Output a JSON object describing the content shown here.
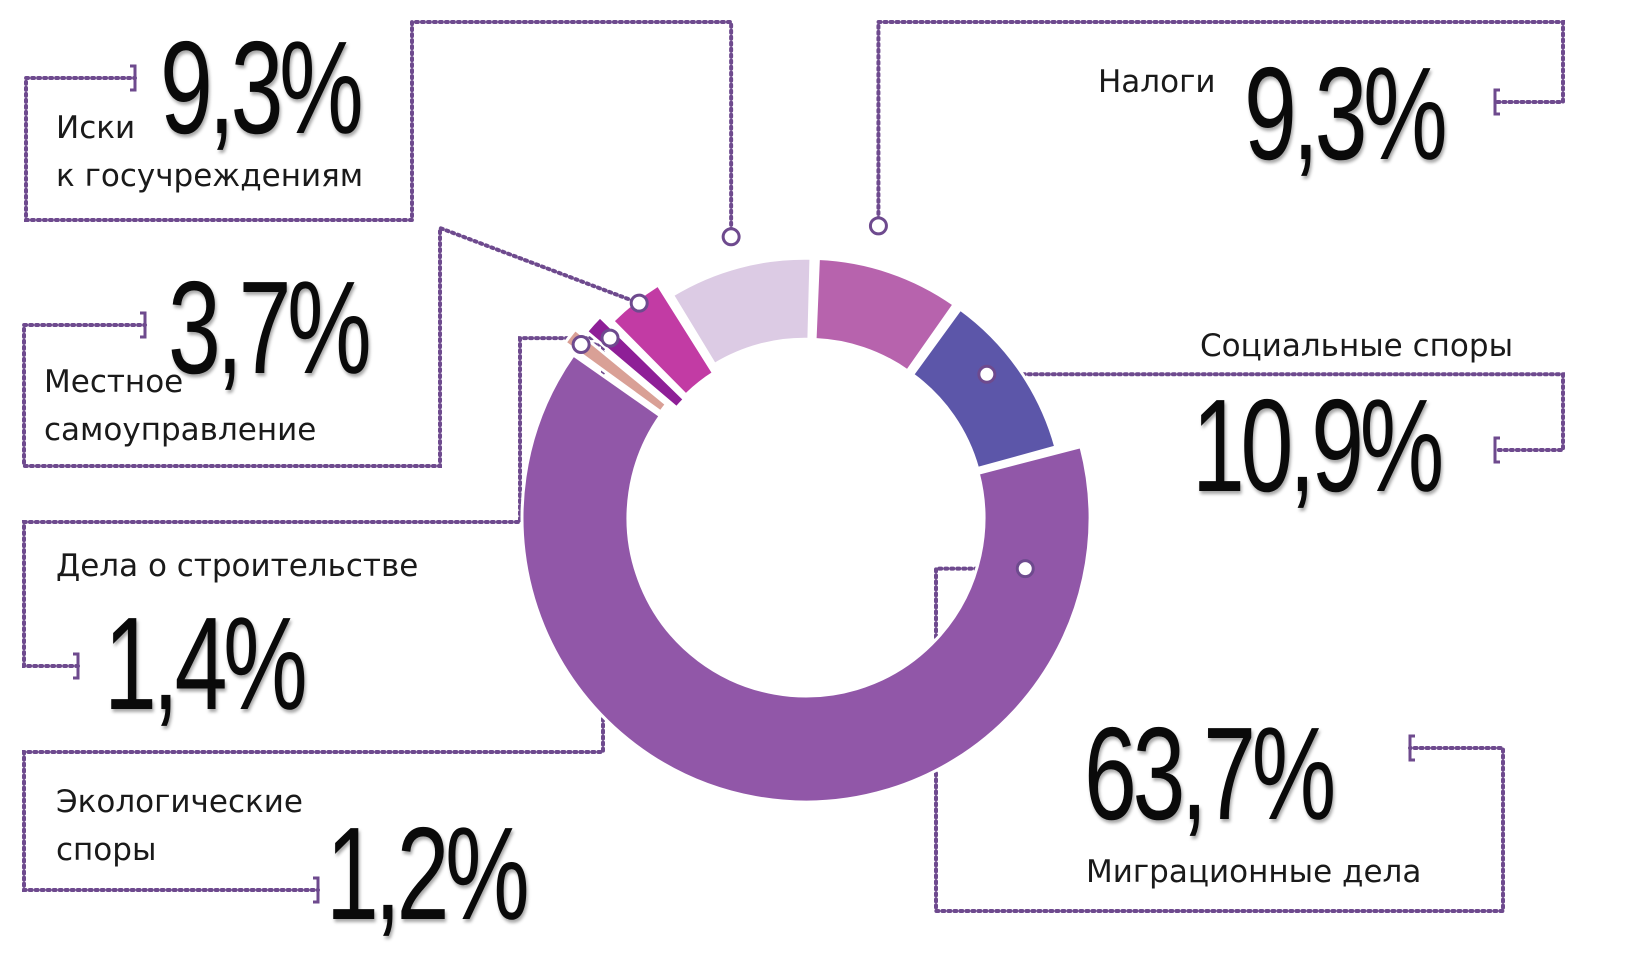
{
  "colors": {
    "connector": "#6e4a8e",
    "dot_fill": "#ffffff",
    "dot_stroke": "#6e4a8e"
  },
  "chart_data": {
    "type": "pie",
    "title": "",
    "donut": true,
    "slices": [
      {
        "id": "migration",
        "label": "Миграционные дела",
        "value": 63.7,
        "value_text": "63,7%",
        "color": "#9157a8",
        "explode": 0
      },
      {
        "id": "ecology",
        "label": "Экологические споры",
        "label_lines": [
          "Экологические",
          "споры"
        ],
        "value": 1.2,
        "value_text": "1,2%",
        "color": "#d9a096",
        "explode": 22
      },
      {
        "id": "construction",
        "label": "Дела о строительстве",
        "value": 1.4,
        "value_text": "1,4%",
        "color": "#8e1f97",
        "explode": 14
      },
      {
        "id": "local",
        "label": "Местное самоуправление",
        "label_lines": [
          "Местное",
          "самоуправление"
        ],
        "value": 3.7,
        "value_text": "3,7%",
        "color": "#c23ba4",
        "explode": 10
      },
      {
        "id": "claims",
        "label": "Иски к госучреждениям",
        "label_lines": [
          "Иски",
          "к госучреждениям"
        ],
        "value": 9.3,
        "value_text": "9,3%",
        "color": "#dccbe4",
        "explode": 6
      },
      {
        "id": "taxes",
        "label": "Налоги",
        "value": 9.3,
        "value_text": "9,3%",
        "color": "#b763ad",
        "explode": 6
      },
      {
        "id": "social",
        "label": "Социальные споры",
        "value": 10.9,
        "value_text": "10,9%",
        "color": "#5c56a9",
        "explode": 6
      }
    ]
  }
}
